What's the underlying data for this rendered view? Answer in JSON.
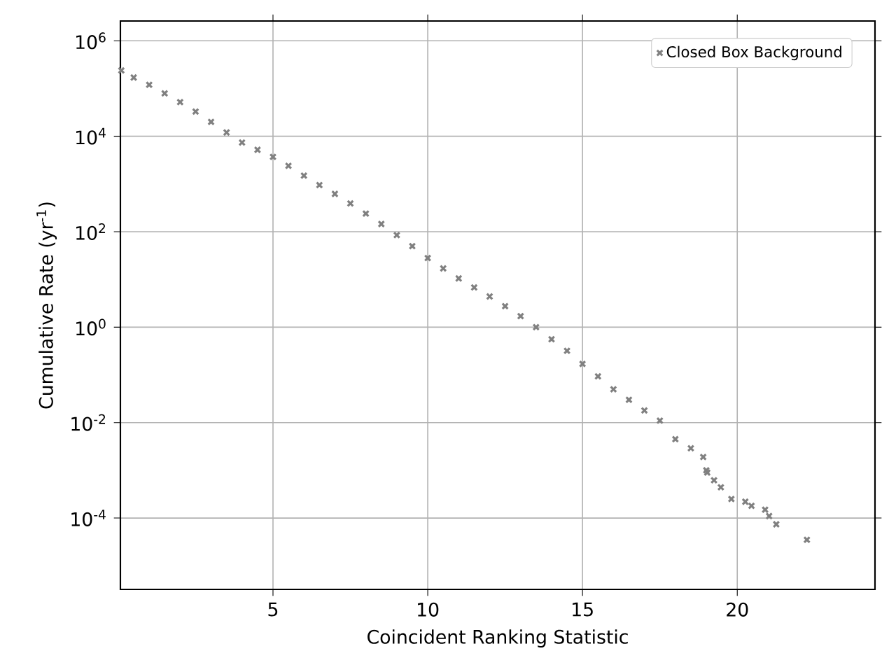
{
  "chart_data": {
    "type": "scatter",
    "xlabel": "Coincident Ranking Statistic",
    "ylabel": "Cumulative Rate (yr$^{-1}$)",
    "xlim": [
      0.07,
      24.45
    ],
    "ylim": [
      3.2e-06,
      2600000.0
    ],
    "log": "y",
    "grid": true,
    "legend": "top right",
    "marker": "cross",
    "xticks": [
      5,
      10,
      15,
      20
    ],
    "yticks": [
      {
        "value": 0.0001,
        "label": "10$^{-4}$"
      },
      {
        "value": 0.01,
        "label": "10$^{-2}$"
      },
      {
        "value": 1,
        "label": "10$^{0}$"
      },
      {
        "value": 100,
        "label": "10$^{2}$"
      },
      {
        "value": 10000,
        "label": "10$^{4}$"
      },
      {
        "value": 1000000,
        "label": "10$^{6}$"
      }
    ],
    "series": [
      {
        "name": "Closed Box Background",
        "color": "#808080",
        "x": [
          0.1,
          0.5,
          1,
          1.5,
          2,
          2.5,
          3,
          3.5,
          4,
          4.5,
          5,
          5.5,
          6,
          6.5,
          7,
          7.5,
          8,
          8.5,
          9,
          9.5,
          10,
          10.5,
          11,
          11.5,
          12,
          12.5,
          13,
          13.5,
          14,
          14.5,
          15,
          15.5,
          16,
          16.5,
          17,
          17.5,
          18,
          18.5,
          18.9,
          19.0,
          19.03,
          19.25,
          19.47,
          19.81,
          20.26,
          20.46,
          20.9,
          21.03,
          21.26,
          22.25
        ],
        "values": [
          240000,
          170000,
          120000,
          79000,
          52000,
          33000,
          20000,
          12000,
          7400,
          5200,
          3700,
          2400,
          1500,
          950,
          620,
          390,
          240,
          145,
          85,
          50,
          28,
          17,
          10.5,
          6.8,
          4.4,
          2.75,
          1.7,
          1.0,
          0.56,
          0.32,
          0.17,
          0.093,
          0.05,
          0.03,
          0.018,
          0.011,
          0.0045,
          0.0029,
          0.0019,
          0.001,
          0.0009,
          0.00062,
          0.00044,
          0.00025,
          0.00022,
          0.00018,
          0.00015,
          0.00011,
          7.4e-05,
          3.5e-05
        ]
      }
    ]
  }
}
